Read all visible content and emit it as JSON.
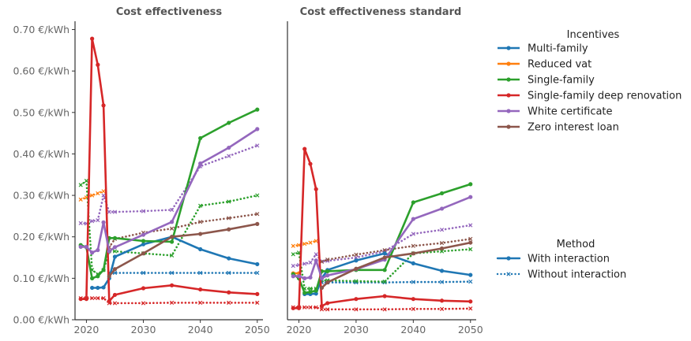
{
  "colors": {
    "Multi-family": "#1f77b4",
    "Reduced vat": "#ff7f0e",
    "Single-family": "#2ca02c",
    "Single-family deep renovation": "#d62728",
    "White certificate": "#9467bd",
    "Zero interest loan": "#8c564b",
    "axis": "#333333",
    "tick_label": "#666666",
    "title": "#555555"
  },
  "legend": {
    "incentives_title": "Incentives",
    "incentives": [
      "Multi-family",
      "Reduced vat",
      "Single-family",
      "Single-family deep renovation",
      "White certificate",
      "Zero interest loan"
    ],
    "method_title": "Method",
    "methods": [
      "With interaction",
      "Without interaction"
    ]
  },
  "chart_data": [
    {
      "type": "line",
      "title": "Cost effectiveness",
      "xlabel": "",
      "ylabel": "",
      "xlim": [
        2018,
        2051
      ],
      "ylim": [
        0,
        0.72
      ],
      "x_ticks": [
        2020,
        2030,
        2040,
        2050
      ],
      "y_ticks": [
        0,
        0.1,
        0.2,
        0.3,
        0.4,
        0.5,
        0.6,
        0.7
      ],
      "y_tick_labels": [
        "0.00 €/kWh",
        "0.10 €/kWh",
        "0.20 €/kWh",
        "0.30 €/kWh",
        "0.40 €/kWh",
        "0.50 €/kWh",
        "0.60 €/kWh",
        "0.70 €/kWh"
      ],
      "grid": false,
      "series": [
        {
          "name": "Multi-family",
          "method": "With interaction",
          "x": [
            2021,
            2022,
            2023,
            2024,
            2025,
            2030,
            2035,
            2040,
            2045,
            2050
          ],
          "y": [
            0.077,
            0.077,
            0.078,
            0.1,
            0.152,
            0.182,
            0.2,
            0.17,
            0.148,
            0.134
          ]
        },
        {
          "name": "Reduced vat",
          "method": "Without interaction",
          "x": [
            2019,
            2020,
            2021,
            2022,
            2023
          ],
          "y": [
            0.29,
            0.295,
            0.3,
            0.305,
            0.31
          ]
        },
        {
          "name": "Single-family",
          "method": "With interaction",
          "x": [
            2019,
            2020,
            2021,
            2022,
            2023,
            2024,
            2025,
            2030,
            2035,
            2040,
            2045,
            2050
          ],
          "y": [
            0.18,
            0.175,
            0.1,
            0.105,
            0.12,
            0.197,
            0.197,
            0.19,
            0.188,
            0.438,
            0.475,
            0.507
          ]
        },
        {
          "name": "Single-family deep renovation",
          "method": "With interaction",
          "x": [
            2019,
            2020,
            2021,
            2022,
            2023,
            2024,
            2025,
            2030,
            2035,
            2040,
            2045,
            2050
          ],
          "y": [
            0.05,
            0.05,
            0.678,
            0.615,
            0.517,
            0.045,
            0.06,
            0.076,
            0.083,
            0.073,
            0.066,
            0.062
          ]
        },
        {
          "name": "White certificate",
          "method": "With interaction",
          "x": [
            2019,
            2020,
            2021,
            2022,
            2023,
            2024,
            2025,
            2030,
            2035,
            2040,
            2045,
            2050
          ],
          "y": [
            0.176,
            0.176,
            0.162,
            0.168,
            0.235,
            0.165,
            0.175,
            0.205,
            0.236,
            0.377,
            0.415,
            0.46
          ]
        },
        {
          "name": "Zero interest loan",
          "method": "With interaction",
          "x": [
            2024,
            2025,
            2030,
            2035,
            2040,
            2045,
            2050
          ],
          "y": [
            0.105,
            0.122,
            0.16,
            0.2,
            0.207,
            0.218,
            0.231
          ]
        },
        {
          "name": "Multi-family",
          "method": "Without interaction",
          "x": [
            2024,
            2025,
            2030,
            2035,
            2040,
            2045,
            2050
          ],
          "y": [
            0.113,
            0.113,
            0.113,
            0.113,
            0.113,
            0.113,
            0.113
          ]
        },
        {
          "name": "Single-family",
          "method": "Without interaction",
          "x": [
            2019,
            2020,
            2021,
            2022,
            2023,
            2024,
            2025,
            2030,
            2035,
            2040,
            2045,
            2050
          ],
          "y": [
            0.325,
            0.335,
            0.12,
            0.11,
            0.12,
            0.165,
            0.165,
            0.16,
            0.155,
            0.275,
            0.285,
            0.3
          ]
        },
        {
          "name": "Single-family deep renovation",
          "method": "Without interaction",
          "x": [
            2019,
            2020,
            2021,
            2022,
            2023,
            2024,
            2025,
            2030,
            2035,
            2040,
            2045,
            2050
          ],
          "y": [
            0.052,
            0.052,
            0.052,
            0.052,
            0.052,
            0.04,
            0.04,
            0.04,
            0.041,
            0.041,
            0.041,
            0.041
          ]
        },
        {
          "name": "White certificate",
          "method": "Without interaction",
          "x": [
            2019,
            2020,
            2021,
            2022,
            2023,
            2024,
            2025,
            2030,
            2035,
            2040,
            2045,
            2050
          ],
          "y": [
            0.233,
            0.232,
            0.238,
            0.24,
            0.3,
            0.26,
            0.26,
            0.262,
            0.265,
            0.37,
            0.395,
            0.42
          ]
        },
        {
          "name": "Zero interest loan",
          "method": "Without interaction",
          "x": [
            2024,
            2025,
            2030,
            2035,
            2040,
            2045,
            2050
          ],
          "y": [
            0.175,
            0.195,
            0.21,
            0.22,
            0.236,
            0.245,
            0.255
          ]
        }
      ]
    },
    {
      "type": "line",
      "title": "Cost effectiveness standard",
      "xlabel": "",
      "ylabel": "",
      "xlim": [
        2018,
        2051
      ],
      "ylim": [
        0,
        0.72
      ],
      "x_ticks": [
        2020,
        2030,
        2040,
        2050
      ],
      "y_ticks": [],
      "y_tick_labels": [],
      "grid": false,
      "series": [
        {
          "name": "Multi-family",
          "method": "With interaction",
          "x": [
            2021,
            2022,
            2023,
            2024,
            2025,
            2030,
            2035,
            2040,
            2045,
            2050
          ],
          "y": [
            0.062,
            0.062,
            0.063,
            0.1,
            0.12,
            0.143,
            0.16,
            0.136,
            0.118,
            0.108
          ]
        },
        {
          "name": "Reduced vat",
          "method": "With interaction",
          "x": [
            2019,
            2020
          ],
          "y": [
            0.112,
            0.112
          ]
        },
        {
          "name": "Reduced vat",
          "method": "Without interaction",
          "x": [
            2019,
            2020,
            2021,
            2022,
            2023
          ],
          "y": [
            0.178,
            0.18,
            0.183,
            0.186,
            0.19
          ]
        },
        {
          "name": "Single-family",
          "method": "With interaction",
          "x": [
            2019,
            2020,
            2021,
            2022,
            2023,
            2024,
            2025,
            2030,
            2035,
            2040,
            2045,
            2050
          ],
          "y": [
            0.11,
            0.1,
            0.065,
            0.067,
            0.07,
            0.117,
            0.117,
            0.12,
            0.12,
            0.283,
            0.305,
            0.327
          ]
        },
        {
          "name": "Single-family deep renovation",
          "method": "With interaction",
          "x": [
            2019,
            2020,
            2021,
            2022,
            2023,
            2024,
            2025,
            2030,
            2035,
            2040,
            2045,
            2050
          ],
          "y": [
            0.028,
            0.028,
            0.412,
            0.376,
            0.315,
            0.033,
            0.04,
            0.05,
            0.057,
            0.05,
            0.046,
            0.044
          ]
        },
        {
          "name": "White certificate",
          "method": "With interaction",
          "x": [
            2019,
            2020,
            2021,
            2022,
            2023,
            2024,
            2025,
            2030,
            2035,
            2040,
            2045,
            2050
          ],
          "y": [
            0.105,
            0.105,
            0.1,
            0.102,
            0.143,
            0.1,
            0.107,
            0.122,
            0.145,
            0.243,
            0.268,
            0.296
          ]
        },
        {
          "name": "Zero interest loan",
          "method": "With interaction",
          "x": [
            2024,
            2025,
            2030,
            2035,
            2040,
            2045,
            2050
          ],
          "y": [
            0.077,
            0.09,
            0.123,
            0.15,
            0.16,
            0.172,
            0.186
          ]
        },
        {
          "name": "Multi-family",
          "method": "Without interaction",
          "x": [
            2024,
            2025,
            2030,
            2035,
            2040,
            2045,
            2050
          ],
          "y": [
            0.09,
            0.09,
            0.09,
            0.09,
            0.091,
            0.091,
            0.092
          ]
        },
        {
          "name": "Single-family",
          "method": "Without interaction",
          "x": [
            2019,
            2020,
            2021,
            2022,
            2023,
            2024,
            2025,
            2030,
            2035,
            2040,
            2045,
            2050
          ],
          "y": [
            0.158,
            0.162,
            0.075,
            0.075,
            0.075,
            0.095,
            0.095,
            0.093,
            0.092,
            0.16,
            0.165,
            0.17
          ]
        },
        {
          "name": "Single-family deep renovation",
          "method": "Without interaction",
          "x": [
            2019,
            2020,
            2021,
            2022,
            2023,
            2024,
            2025,
            2030,
            2035,
            2040,
            2045,
            2050
          ],
          "y": [
            0.03,
            0.03,
            0.03,
            0.03,
            0.03,
            0.025,
            0.025,
            0.025,
            0.025,
            0.026,
            0.026,
            0.027
          ]
        },
        {
          "name": "White certificate",
          "method": "Without interaction",
          "x": [
            2019,
            2020,
            2021,
            2022,
            2023,
            2024,
            2025,
            2030,
            2035,
            2040,
            2045,
            2050
          ],
          "y": [
            0.13,
            0.132,
            0.135,
            0.138,
            0.158,
            0.14,
            0.142,
            0.15,
            0.165,
            0.207,
            0.217,
            0.228
          ]
        },
        {
          "name": "Zero interest loan",
          "method": "Without interaction",
          "x": [
            2024,
            2025,
            2030,
            2035,
            2040,
            2045,
            2050
          ],
          "y": [
            0.14,
            0.145,
            0.157,
            0.168,
            0.178,
            0.185,
            0.195
          ]
        }
      ]
    }
  ]
}
